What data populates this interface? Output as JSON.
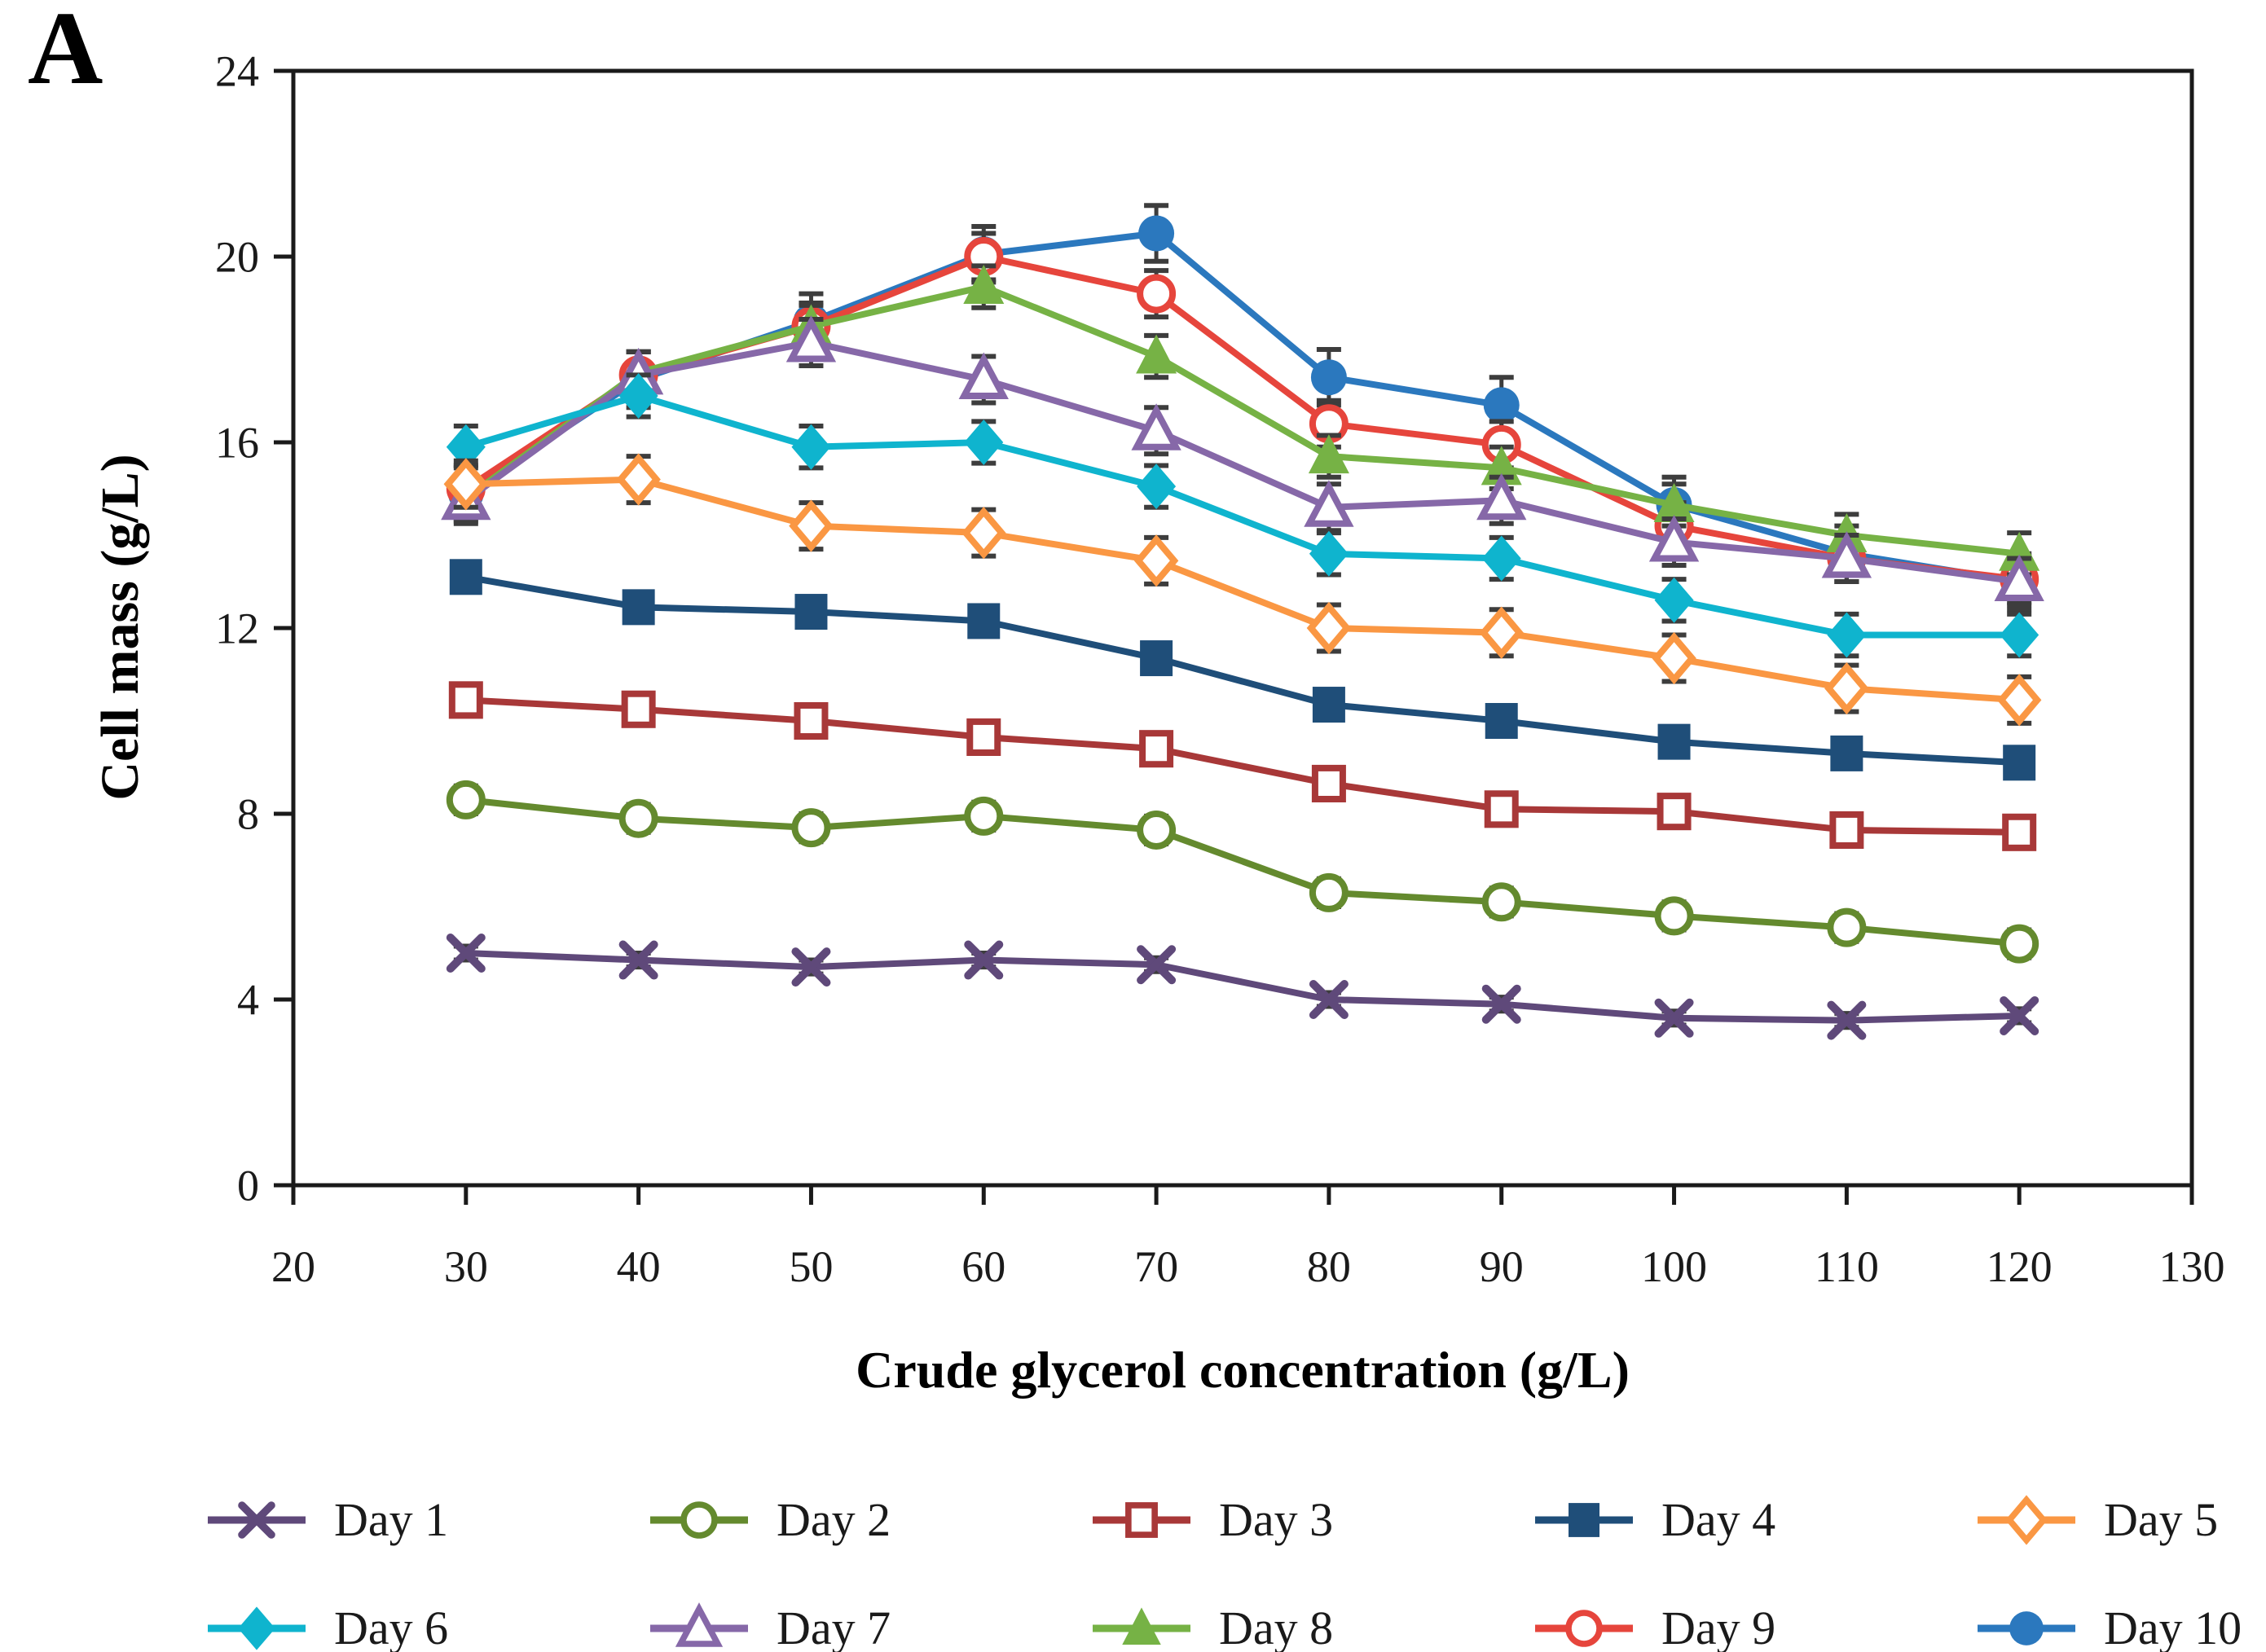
{
  "panel_label": "A",
  "chart_data": {
    "type": "line",
    "title": "",
    "xlabel": "Crude glycerol concentration (g/L)",
    "ylabel": "Cell mass (g/L)",
    "xlim": [
      20,
      130
    ],
    "ylim": [
      0,
      24
    ],
    "x_ticks": [
      20,
      30,
      40,
      50,
      60,
      70,
      80,
      90,
      100,
      110,
      120,
      130
    ],
    "y_ticks": [
      0,
      4,
      8,
      12,
      16,
      20,
      24
    ],
    "grid": false,
    "plot_border": true,
    "legend_position": "bottom-two-rows",
    "error_bar_color": "#3d3d3d",
    "x": [
      30,
      40,
      50,
      60,
      70,
      80,
      90,
      100,
      110,
      120
    ],
    "series": [
      {
        "name": "Day 1",
        "color": "#5F497A",
        "marker": "x-cross",
        "err": 0.15,
        "values": [
          5.0,
          4.85,
          4.7,
          4.85,
          4.75,
          4.0,
          3.9,
          3.6,
          3.55,
          3.65
        ]
      },
      {
        "name": "Day 2",
        "color": "#648A2E",
        "marker": "circle-open",
        "err": 0.3,
        "values": [
          8.3,
          7.9,
          7.7,
          7.95,
          7.65,
          6.3,
          6.1,
          5.8,
          5.55,
          5.2
        ]
      },
      {
        "name": "Day 3",
        "color": "#A83838",
        "marker": "square-open",
        "err": 0.25,
        "values": [
          10.45,
          10.25,
          10.0,
          9.65,
          9.4,
          8.65,
          8.1,
          8.05,
          7.65,
          7.6
        ]
      },
      {
        "name": "Day 4",
        "color": "#1F4E79",
        "marker": "square-filled",
        "err": 0.3,
        "values": [
          13.1,
          12.45,
          12.35,
          12.15,
          11.35,
          10.35,
          10.0,
          9.55,
          9.3,
          9.1
        ]
      },
      {
        "name": "Day 5",
        "color": "#FA9743",
        "marker": "diamond-open",
        "err": 0.5,
        "values": [
          15.1,
          15.2,
          14.2,
          14.05,
          13.45,
          12.0,
          11.9,
          11.35,
          10.7,
          10.45
        ]
      },
      {
        "name": "Day 6",
        "color": "#0FB4CE",
        "marker": "diamond-filled",
        "err": 0.45,
        "values": [
          15.9,
          17.0,
          15.9,
          16.0,
          15.05,
          13.6,
          13.5,
          12.6,
          11.85,
          11.85
        ]
      },
      {
        "name": "Day 7",
        "color": "#8668A8",
        "marker": "triangle-open",
        "err": 0.5,
        "values": [
          14.75,
          17.45,
          18.15,
          17.35,
          16.25,
          14.6,
          14.75,
          13.85,
          13.5,
          13.0
        ]
      },
      {
        "name": "Day 8",
        "color": "#76B245",
        "marker": "triangle-filled",
        "err": 0.45,
        "values": [
          14.8,
          17.5,
          18.5,
          19.35,
          17.85,
          15.7,
          15.45,
          14.65,
          14.0,
          13.6
        ]
      },
      {
        "name": "Day 9",
        "color": "#E6453C",
        "marker": "circle-open",
        "err": 0.5,
        "values": [
          15.0,
          17.45,
          18.5,
          20.0,
          19.2,
          16.4,
          15.95,
          14.2,
          13.5,
          13.05
        ]
      },
      {
        "name": "Day 10",
        "color": "#2B78BE",
        "marker": "circle-filled",
        "err": 0.6,
        "values": [
          14.9,
          17.35,
          18.6,
          20.05,
          20.5,
          17.4,
          16.8,
          14.65,
          13.6,
          13.0
        ]
      }
    ]
  }
}
